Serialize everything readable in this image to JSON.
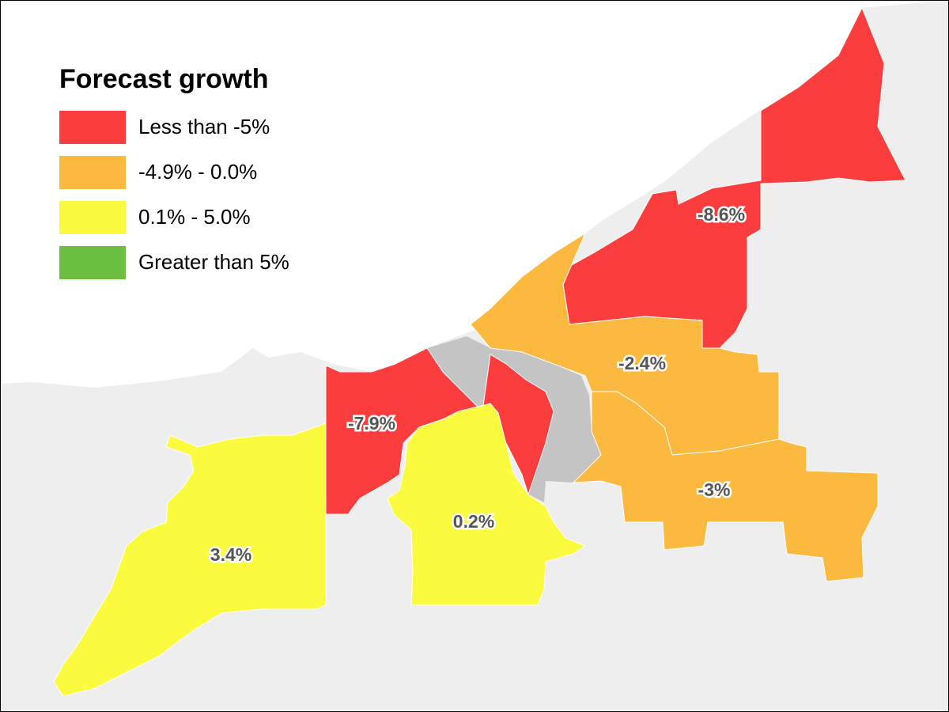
{
  "legend": {
    "title": "Forecast growth",
    "items": [
      {
        "label": "Less than -5%",
        "color": "#fc3d3d"
      },
      {
        "label": "-4.9% - 0.0%",
        "color": "#fbb940"
      },
      {
        "label": "0.1% - 5.0%",
        "color": "#fafa3e"
      },
      {
        "label": "Greater than 5%",
        "color": "#6cbf40"
      }
    ]
  },
  "regions": [
    {
      "id": "northeast",
      "value_label": "-8.6%",
      "category": "Less than -5%",
      "color": "#fc3d3d"
    },
    {
      "id": "west-central",
      "value_label": "-7.9%",
      "category": "Less than -5%",
      "color": "#fc3d3d"
    },
    {
      "id": "east-central",
      "value_label": "-2.4%",
      "category": "-4.9% - 0.0%",
      "color": "#fbb940"
    },
    {
      "id": "southeast",
      "value_label": "-3%",
      "category": "-4.9% - 0.0%",
      "color": "#fbb940"
    },
    {
      "id": "southwest",
      "value_label": "3.4%",
      "category": "0.1% - 5.0%",
      "color": "#fafa3e"
    },
    {
      "id": "south-central",
      "value_label": "0.2%",
      "category": "0.1% - 5.0%",
      "color": "#fafa3e"
    }
  ],
  "colors": {
    "background": "#ffffff",
    "land": "#eeeeee",
    "no_data": "#c4c4c4",
    "region_label_text": "#555555"
  }
}
